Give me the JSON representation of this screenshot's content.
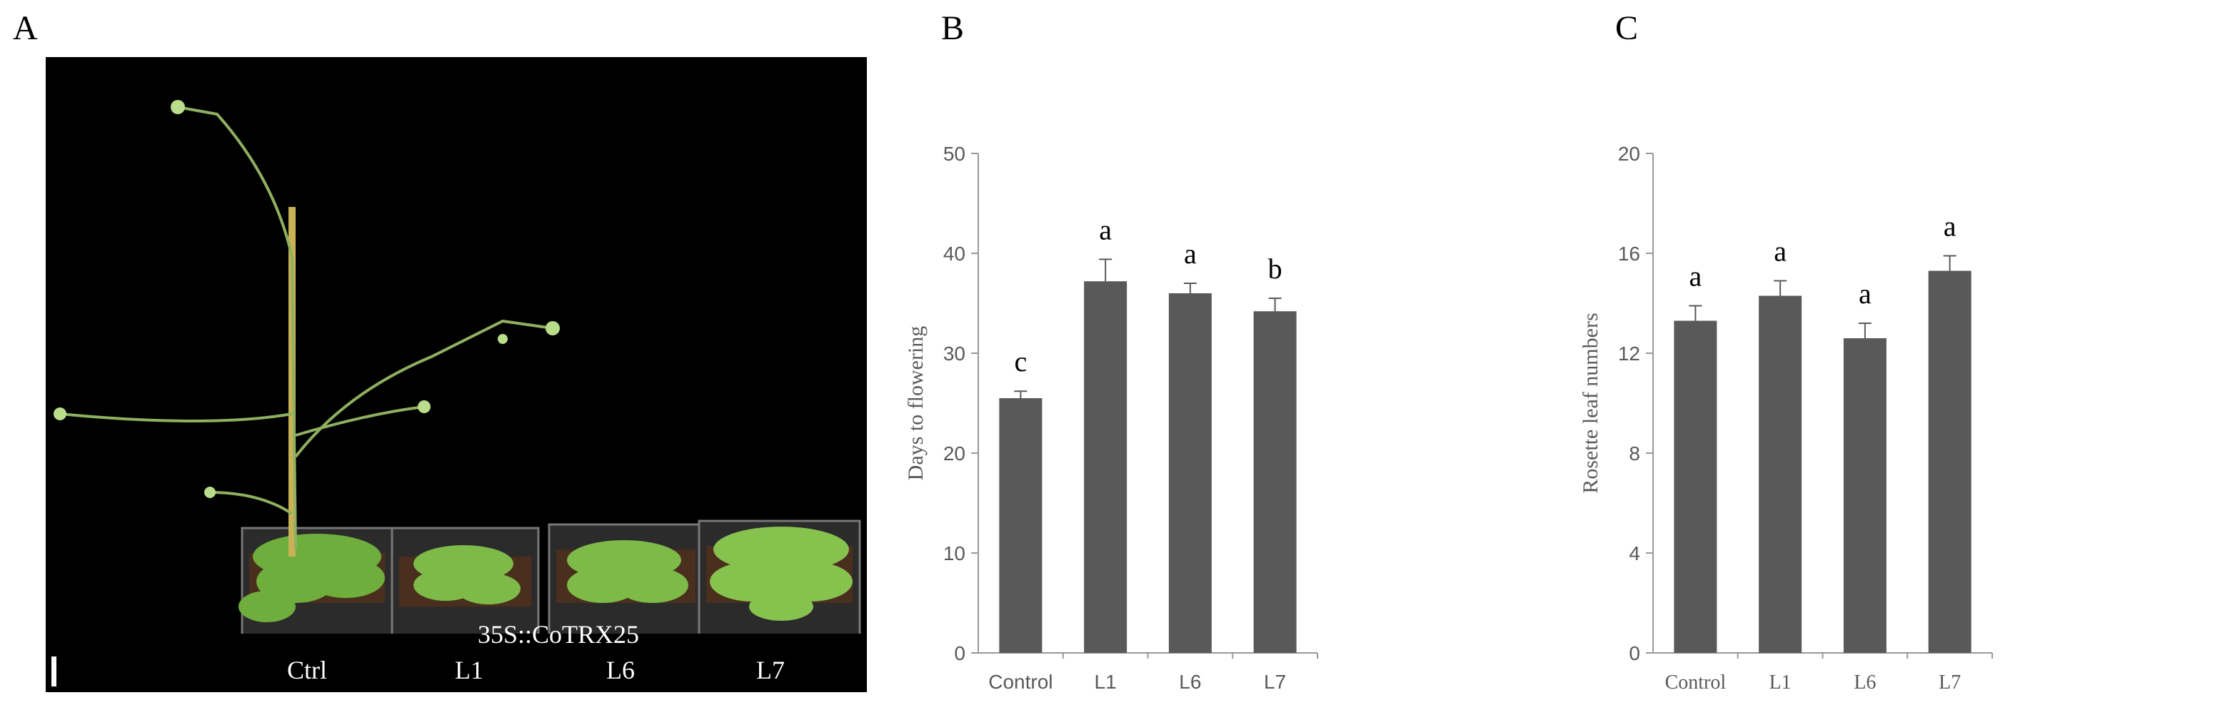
{
  "panels": {
    "a": "A",
    "b": "B",
    "c": "C"
  },
  "photo": {
    "construct_label": "35S::CoTRX25",
    "lane_labels": [
      "Ctrl",
      "L1",
      "L6",
      "L7"
    ],
    "background": "#000000"
  },
  "chart_data": [
    {
      "type": "bar",
      "title": "",
      "xlabel": "",
      "ylabel": "Days to flowering",
      "categories": [
        "Control",
        "L1",
        "L6",
        "L7"
      ],
      "values": [
        25.5,
        37.2,
        36.0,
        34.2
      ],
      "errors": [
        0.7,
        2.2,
        1.0,
        1.3
      ],
      "significance": [
        "c",
        "a",
        "a",
        "b"
      ],
      "ylim": [
        0,
        50
      ],
      "yticks": [
        0,
        10,
        20,
        30,
        40,
        50
      ],
      "grid": false,
      "bar_color": "#595959",
      "category_font": "Liberation Sans"
    },
    {
      "type": "bar",
      "title": "",
      "xlabel": "",
      "ylabel": "Rosette leaf numbers",
      "categories": [
        "Control",
        "L1",
        "L6",
        "L7"
      ],
      "values": [
        13.3,
        14.3,
        12.6,
        15.3
      ],
      "errors": [
        0.6,
        0.6,
        0.6,
        0.6
      ],
      "significance": [
        "a",
        "a",
        "a",
        "a"
      ],
      "ylim": [
        0,
        20
      ],
      "yticks": [
        0,
        4,
        8,
        12,
        16,
        20
      ],
      "grid": false,
      "bar_color": "#595959",
      "category_font": "Liberation Serif"
    }
  ]
}
